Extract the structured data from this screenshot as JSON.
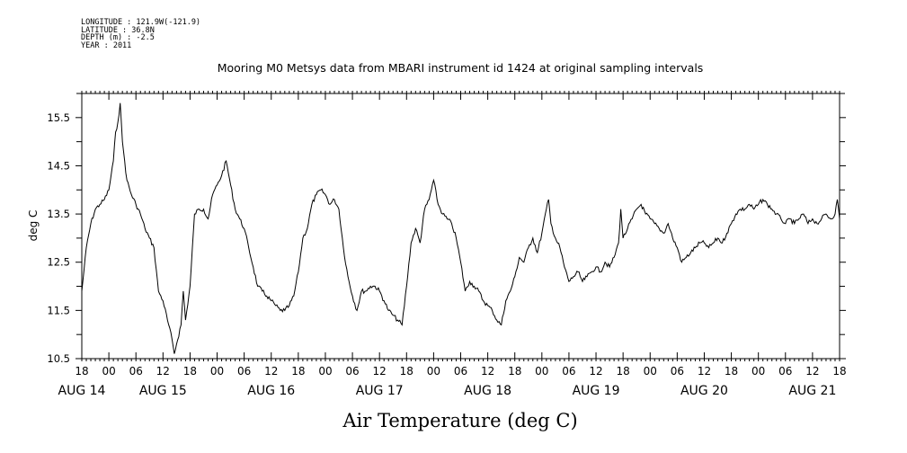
{
  "header": {
    "longitude": "LONGITUDE : 121.9W(-121.9)",
    "latitude": "LATITUDE : 36.8N",
    "depth": "DEPTH (m) : -2.5",
    "year": "YEAR : 2011"
  },
  "chart_data": {
    "type": "line",
    "title": "Mooring M0 Metsys data from MBARI instrument id 1424 at original sampling intervals",
    "xlabel": "Air Temperature (deg C)",
    "ylabel": "deg C",
    "xlim": [
      "2011-08-14 18:00",
      "2011-08-21 18:00"
    ],
    "ylim": [
      10.5,
      16.0
    ],
    "y_ticks": [
      "10.5",
      "11.5",
      "12.5",
      "13.5",
      "14.5",
      "15.5"
    ],
    "x_hour_ticks": [
      {
        "t": "2011-08-14 18:00",
        "label": "18"
      },
      {
        "t": "2011-08-15 00:00",
        "label": "00"
      },
      {
        "t": "2011-08-15 06:00",
        "label": "06"
      },
      {
        "t": "2011-08-15 12:00",
        "label": "12"
      },
      {
        "t": "2011-08-15 18:00",
        "label": "18"
      },
      {
        "t": "2011-08-16 00:00",
        "label": "00"
      },
      {
        "t": "2011-08-16 06:00",
        "label": "06"
      },
      {
        "t": "2011-08-16 12:00",
        "label": "12"
      },
      {
        "t": "2011-08-16 18:00",
        "label": "18"
      },
      {
        "t": "2011-08-17 00:00",
        "label": "00"
      },
      {
        "t": "2011-08-17 06:00",
        "label": "06"
      },
      {
        "t": "2011-08-17 12:00",
        "label": "12"
      },
      {
        "t": "2011-08-17 18:00",
        "label": "18"
      },
      {
        "t": "2011-08-18 00:00",
        "label": "00"
      },
      {
        "t": "2011-08-18 06:00",
        "label": "06"
      },
      {
        "t": "2011-08-18 12:00",
        "label": "12"
      },
      {
        "t": "2011-08-18 18:00",
        "label": "18"
      },
      {
        "t": "2011-08-19 00:00",
        "label": "00"
      },
      {
        "t": "2011-08-19 06:00",
        "label": "06"
      },
      {
        "t": "2011-08-19 12:00",
        "label": "12"
      },
      {
        "t": "2011-08-19 18:00",
        "label": "18"
      },
      {
        "t": "2011-08-20 00:00",
        "label": "00"
      },
      {
        "t": "2011-08-20 06:00",
        "label": "06"
      },
      {
        "t": "2011-08-20 12:00",
        "label": "12"
      },
      {
        "t": "2011-08-20 18:00",
        "label": "18"
      },
      {
        "t": "2011-08-21 00:00",
        "label": "00"
      },
      {
        "t": "2011-08-21 06:00",
        "label": "06"
      },
      {
        "t": "2011-08-21 12:00",
        "label": "12"
      },
      {
        "t": "2011-08-21 18:00",
        "label": "18"
      }
    ],
    "x_date_labels": [
      {
        "t": "2011-08-14 18:00",
        "label": "AUG 14"
      },
      {
        "t": "2011-08-15 12:00",
        "label": "AUG 15"
      },
      {
        "t": "2011-08-16 12:00",
        "label": "AUG 16"
      },
      {
        "t": "2011-08-17 12:00",
        "label": "AUG 17"
      },
      {
        "t": "2011-08-18 12:00",
        "label": "AUG 18"
      },
      {
        "t": "2011-08-19 12:00",
        "label": "AUG 19"
      },
      {
        "t": "2011-08-20 12:00",
        "label": "AUG 20"
      },
      {
        "t": "2011-08-21 12:00",
        "label": "AUG 21"
      }
    ],
    "grid": false,
    "series": [
      {
        "color": "#000000",
        "points": [
          [
            "2011-08-14 18:00",
            11.9
          ],
          [
            "2011-08-14 19:00",
            12.8
          ],
          [
            "2011-08-14 20:00",
            13.3
          ],
          [
            "2011-08-14 21:00",
            13.6
          ],
          [
            "2011-08-14 22:00",
            13.7
          ],
          [
            "2011-08-14 23:00",
            13.8
          ],
          [
            "2011-08-15 00:00",
            14.0
          ],
          [
            "2011-08-15 01:00",
            14.6
          ],
          [
            "2011-08-15 01:30",
            15.2
          ],
          [
            "2011-08-15 02:00",
            15.4
          ],
          [
            "2011-08-15 02:30",
            15.8
          ],
          [
            "2011-08-15 03:00",
            15.0
          ],
          [
            "2011-08-15 03:30",
            14.6
          ],
          [
            "2011-08-15 04:00",
            14.2
          ],
          [
            "2011-08-15 05:00",
            13.9
          ],
          [
            "2011-08-15 06:00",
            13.7
          ],
          [
            "2011-08-15 07:00",
            13.5
          ],
          [
            "2011-08-15 08:00",
            13.2
          ],
          [
            "2011-08-15 09:00",
            13.0
          ],
          [
            "2011-08-15 10:00",
            12.8
          ],
          [
            "2011-08-15 11:00",
            11.9
          ],
          [
            "2011-08-15 12:00",
            11.7
          ],
          [
            "2011-08-15 13:00",
            11.3
          ],
          [
            "2011-08-15 14:00",
            10.9
          ],
          [
            "2011-08-15 14:30",
            10.6
          ],
          [
            "2011-08-15 15:00",
            10.8
          ],
          [
            "2011-08-15 16:00",
            11.2
          ],
          [
            "2011-08-15 16:30",
            11.9
          ],
          [
            "2011-08-15 17:00",
            11.3
          ],
          [
            "2011-08-15 18:00",
            12.0
          ],
          [
            "2011-08-15 19:00",
            13.5
          ],
          [
            "2011-08-15 20:00",
            13.6
          ],
          [
            "2011-08-15 21:00",
            13.6
          ],
          [
            "2011-08-15 22:00",
            13.4
          ],
          [
            "2011-08-15 23:00",
            13.9
          ],
          [
            "2011-08-16 00:00",
            14.1
          ],
          [
            "2011-08-16 01:00",
            14.3
          ],
          [
            "2011-08-16 02:00",
            14.6
          ],
          [
            "2011-08-16 03:00",
            14.1
          ],
          [
            "2011-08-16 04:00",
            13.6
          ],
          [
            "2011-08-16 05:00",
            13.4
          ],
          [
            "2011-08-16 06:00",
            13.2
          ],
          [
            "2011-08-16 07:00",
            12.8
          ],
          [
            "2011-08-16 08:00",
            12.4
          ],
          [
            "2011-08-16 09:00",
            12.0
          ],
          [
            "2011-08-16 10:00",
            11.9
          ],
          [
            "2011-08-16 11:00",
            11.8
          ],
          [
            "2011-08-16 12:00",
            11.7
          ],
          [
            "2011-08-16 13:00",
            11.6
          ],
          [
            "2011-08-16 14:00",
            11.5
          ],
          [
            "2011-08-16 15:00",
            11.5
          ],
          [
            "2011-08-16 16:00",
            11.6
          ],
          [
            "2011-08-16 17:00",
            11.8
          ],
          [
            "2011-08-16 18:00",
            12.3
          ],
          [
            "2011-08-16 19:00",
            13.0
          ],
          [
            "2011-08-16 20:00",
            13.2
          ],
          [
            "2011-08-16 21:00",
            13.7
          ],
          [
            "2011-08-16 22:00",
            13.9
          ],
          [
            "2011-08-16 23:00",
            14.0
          ],
          [
            "2011-08-17 00:00",
            13.9
          ],
          [
            "2011-08-17 01:00",
            13.7
          ],
          [
            "2011-08-17 02:00",
            13.8
          ],
          [
            "2011-08-17 03:00",
            13.6
          ],
          [
            "2011-08-17 04:00",
            12.8
          ],
          [
            "2011-08-17 05:00",
            12.2
          ],
          [
            "2011-08-17 06:00",
            11.8
          ],
          [
            "2011-08-17 07:00",
            11.5
          ],
          [
            "2011-08-17 08:00",
            11.9
          ],
          [
            "2011-08-17 09:00",
            11.9
          ],
          [
            "2011-08-17 10:00",
            12.0
          ],
          [
            "2011-08-17 11:00",
            12.0
          ],
          [
            "2011-08-17 12:00",
            11.9
          ],
          [
            "2011-08-17 13:00",
            11.7
          ],
          [
            "2011-08-17 14:00",
            11.5
          ],
          [
            "2011-08-17 15:00",
            11.4
          ],
          [
            "2011-08-17 16:00",
            11.3
          ],
          [
            "2011-08-17 17:00",
            11.2
          ],
          [
            "2011-08-17 18:00",
            12.0
          ],
          [
            "2011-08-17 19:00",
            12.9
          ],
          [
            "2011-08-17 20:00",
            13.2
          ],
          [
            "2011-08-17 21:00",
            12.9
          ],
          [
            "2011-08-17 22:00",
            13.6
          ],
          [
            "2011-08-17 23:00",
            13.8
          ],
          [
            "2011-08-18 00:00",
            14.2
          ],
          [
            "2011-08-18 01:00",
            13.7
          ],
          [
            "2011-08-18 02:00",
            13.5
          ],
          [
            "2011-08-18 03:00",
            13.4
          ],
          [
            "2011-08-18 04:00",
            13.3
          ],
          [
            "2011-08-18 05:00",
            13.0
          ],
          [
            "2011-08-18 06:00",
            12.5
          ],
          [
            "2011-08-18 07:00",
            11.9
          ],
          [
            "2011-08-18 08:00",
            12.1
          ],
          [
            "2011-08-18 09:00",
            12.0
          ],
          [
            "2011-08-18 10:00",
            11.9
          ],
          [
            "2011-08-18 11:00",
            11.7
          ],
          [
            "2011-08-18 12:00",
            11.6
          ],
          [
            "2011-08-18 13:00",
            11.5
          ],
          [
            "2011-08-18 14:00",
            11.3
          ],
          [
            "2011-08-18 15:00",
            11.2
          ],
          [
            "2011-08-18 16:00",
            11.7
          ],
          [
            "2011-08-18 17:00",
            11.9
          ],
          [
            "2011-08-18 18:00",
            12.2
          ],
          [
            "2011-08-18 19:00",
            12.6
          ],
          [
            "2011-08-18 20:00",
            12.5
          ],
          [
            "2011-08-18 21:00",
            12.8
          ],
          [
            "2011-08-18 22:00",
            13.0
          ],
          [
            "2011-08-18 23:00",
            12.7
          ],
          [
            "2011-08-19 00:00",
            13.1
          ],
          [
            "2011-08-19 01:00",
            13.6
          ],
          [
            "2011-08-19 01:30",
            13.8
          ],
          [
            "2011-08-19 02:00",
            13.3
          ],
          [
            "2011-08-19 03:00",
            13.0
          ],
          [
            "2011-08-19 04:00",
            12.8
          ],
          [
            "2011-08-19 05:00",
            12.4
          ],
          [
            "2011-08-19 06:00",
            12.1
          ],
          [
            "2011-08-19 07:00",
            12.2
          ],
          [
            "2011-08-19 08:00",
            12.3
          ],
          [
            "2011-08-19 09:00",
            12.1
          ],
          [
            "2011-08-19 10:00",
            12.2
          ],
          [
            "2011-08-19 11:00",
            12.3
          ],
          [
            "2011-08-19 12:00",
            12.4
          ],
          [
            "2011-08-19 13:00",
            12.3
          ],
          [
            "2011-08-19 14:00",
            12.5
          ],
          [
            "2011-08-19 15:00",
            12.4
          ],
          [
            "2011-08-19 16:00",
            12.6
          ],
          [
            "2011-08-19 17:00",
            12.9
          ],
          [
            "2011-08-19 17:30",
            13.6
          ],
          [
            "2011-08-19 18:00",
            13.0
          ],
          [
            "2011-08-19 19:00",
            13.2
          ],
          [
            "2011-08-19 20:00",
            13.4
          ],
          [
            "2011-08-19 21:00",
            13.6
          ],
          [
            "2011-08-19 22:00",
            13.7
          ],
          [
            "2011-08-19 23:00",
            13.5
          ],
          [
            "2011-08-20 00:00",
            13.4
          ],
          [
            "2011-08-20 01:00",
            13.3
          ],
          [
            "2011-08-20 02:00",
            13.2
          ],
          [
            "2011-08-20 03:00",
            13.1
          ],
          [
            "2011-08-20 04:00",
            13.3
          ],
          [
            "2011-08-20 05:00",
            13.0
          ],
          [
            "2011-08-20 06:00",
            12.8
          ],
          [
            "2011-08-20 07:00",
            12.5
          ],
          [
            "2011-08-20 08:00",
            12.6
          ],
          [
            "2011-08-20 09:00",
            12.7
          ],
          [
            "2011-08-20 10:00",
            12.8
          ],
          [
            "2011-08-20 11:00",
            12.9
          ],
          [
            "2011-08-20 12:00",
            12.9
          ],
          [
            "2011-08-20 13:00",
            12.8
          ],
          [
            "2011-08-20 14:00",
            12.9
          ],
          [
            "2011-08-20 15:00",
            13.0
          ],
          [
            "2011-08-20 16:00",
            12.9
          ],
          [
            "2011-08-20 17:00",
            13.1
          ],
          [
            "2011-08-20 18:00",
            13.3
          ],
          [
            "2011-08-20 19:00",
            13.5
          ],
          [
            "2011-08-20 20:00",
            13.6
          ],
          [
            "2011-08-20 21:00",
            13.6
          ],
          [
            "2011-08-20 22:00",
            13.7
          ],
          [
            "2011-08-20 23:00",
            13.6
          ],
          [
            "2011-08-21 00:00",
            13.7
          ],
          [
            "2011-08-21 01:00",
            13.8
          ],
          [
            "2011-08-21 02:00",
            13.7
          ],
          [
            "2011-08-21 03:00",
            13.6
          ],
          [
            "2011-08-21 04:00",
            13.5
          ],
          [
            "2011-08-21 05:00",
            13.4
          ],
          [
            "2011-08-21 06:00",
            13.3
          ],
          [
            "2011-08-21 07:00",
            13.4
          ],
          [
            "2011-08-21 08:00",
            13.3
          ],
          [
            "2011-08-21 09:00",
            13.4
          ],
          [
            "2011-08-21 10:00",
            13.5
          ],
          [
            "2011-08-21 11:00",
            13.3
          ],
          [
            "2011-08-21 12:00",
            13.4
          ],
          [
            "2011-08-21 13:00",
            13.3
          ],
          [
            "2011-08-21 14:00",
            13.4
          ],
          [
            "2011-08-21 15:00",
            13.5
          ],
          [
            "2011-08-21 16:00",
            13.4
          ],
          [
            "2011-08-21 17:00",
            13.5
          ],
          [
            "2011-08-21 17:30",
            13.8
          ],
          [
            "2011-08-21 18:00",
            13.4
          ]
        ]
      }
    ]
  }
}
